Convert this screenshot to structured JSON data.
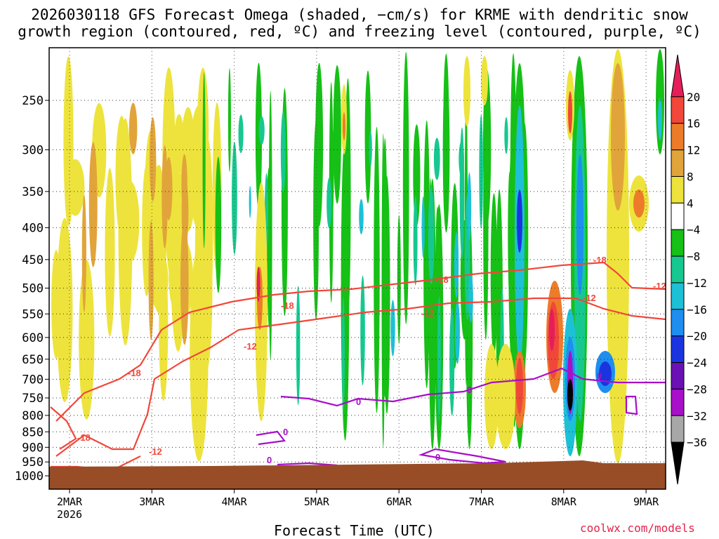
{
  "chart_data": {
    "type": "heatmap",
    "title_line1": "2026030118 GFS Forecast Omega (shaded, −cm/s) for KRME with dendritic snow",
    "title_line2": "growth region (contoured, red, ºC) and freezing level (contoured, purple, ºC)",
    "xlabel": "Forecast Time (UTC)",
    "ylabel": "",
    "y_axis": {
      "scale": "log-pressure",
      "ticks": [
        250,
        300,
        350,
        400,
        450,
        500,
        550,
        600,
        650,
        700,
        750,
        800,
        850,
        900,
        950,
        1000
      ]
    },
    "x_axis": {
      "ticks": [
        {
          "label": "2MAR",
          "sublabel": "2026"
        },
        {
          "label": "3MAR",
          "sublabel": ""
        },
        {
          "label": "4MAR",
          "sublabel": ""
        },
        {
          "label": "5MAR",
          "sublabel": ""
        },
        {
          "label": "6MAR",
          "sublabel": ""
        },
        {
          "label": "7MAR",
          "sublabel": ""
        },
        {
          "label": "8MAR",
          "sublabel": ""
        },
        {
          "label": "9MAR",
          "sublabel": ""
        }
      ]
    },
    "colorbar": {
      "labels": [
        "20",
        "16",
        "12",
        "8",
        "4",
        "−4",
        "−8",
        "−12",
        "−16",
        "−20",
        "−24",
        "−28",
        "−32",
        "−36"
      ],
      "colors": [
        "#e51e5a",
        "#f1473a",
        "#ec7c2a",
        "#e1a43a",
        "#ede33c",
        "#ffffff",
        "#16c016",
        "#16c890",
        "#1ec0d6",
        "#1e8ef0",
        "#1a35e0",
        "#6a10b4",
        "#a70fc8",
        "#a8a8a8",
        "#000000"
      ]
    },
    "ground_color": "#994d26",
    "grid": true,
    "contour_labels": {
      "red": [
        "-18",
        "-12",
        "-18",
        "-12",
        "-18",
        "-12",
        "-18",
        "-12",
        "-18",
        "-12"
      ],
      "purple": [
        "0",
        "0",
        "0",
        "0",
        "0",
        "0"
      ]
    }
  },
  "footer": {
    "credit": "coolwx.com/models"
  }
}
